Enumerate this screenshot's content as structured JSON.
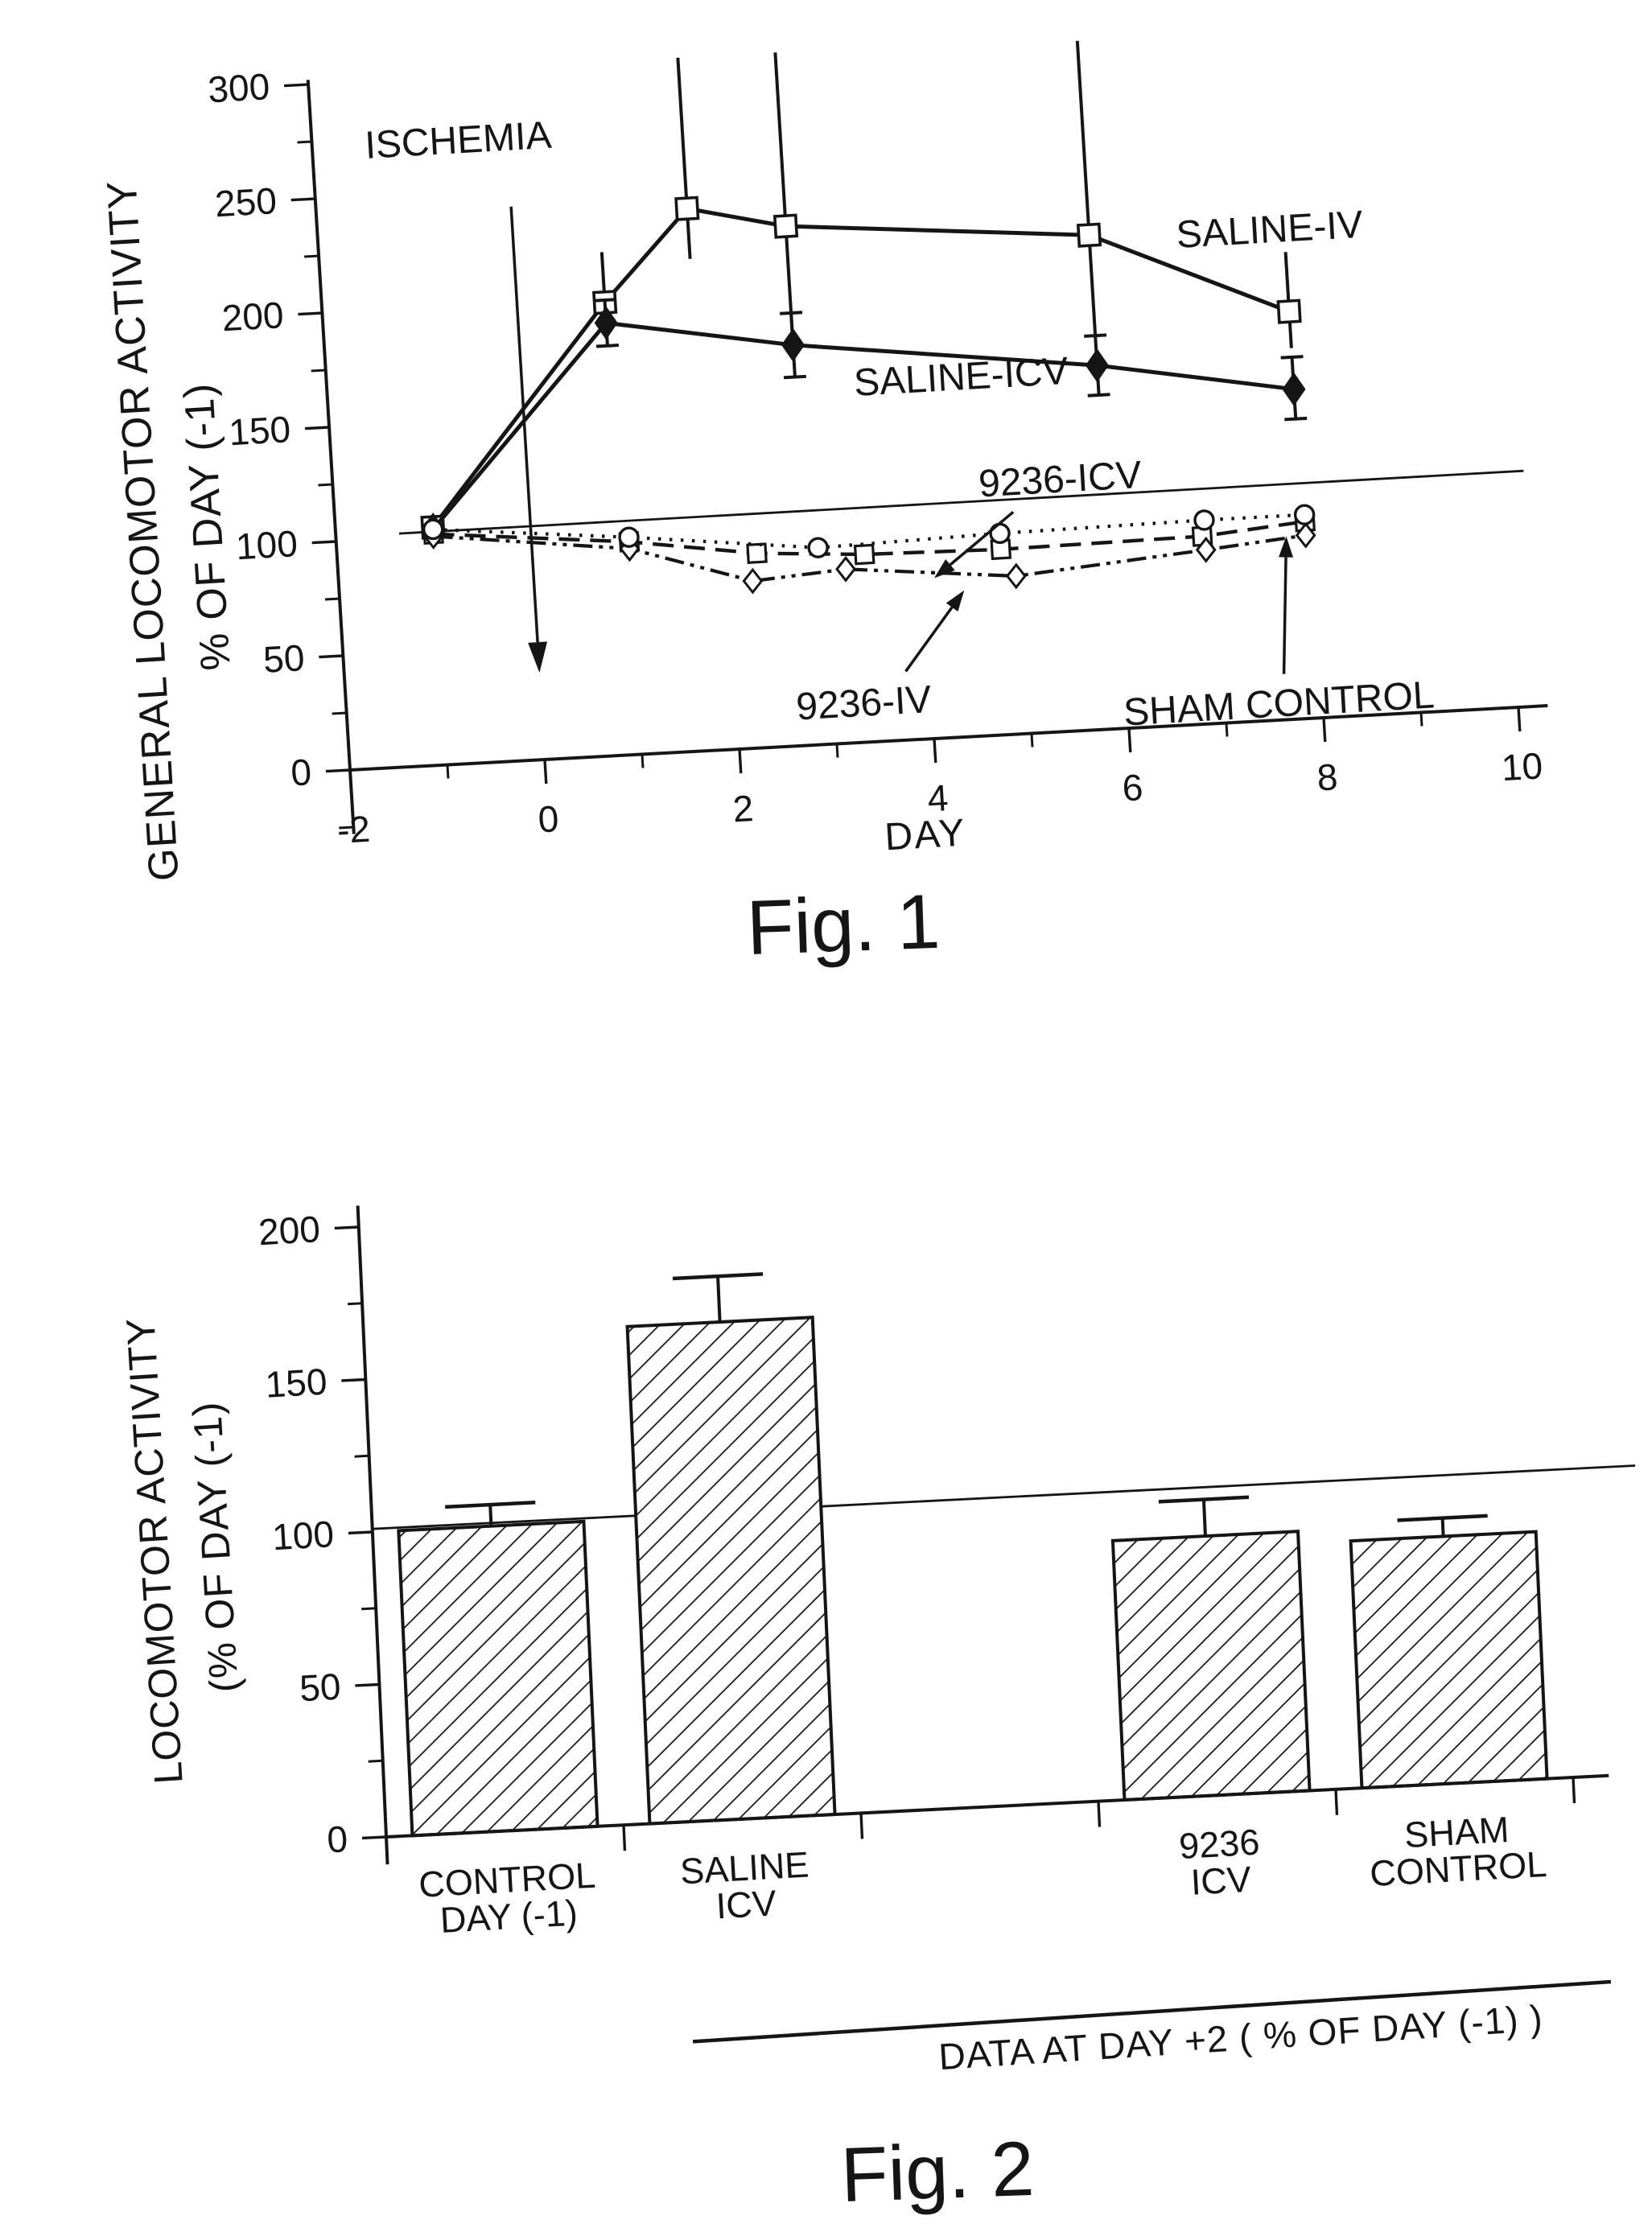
{
  "page": {
    "background": "#ffffff",
    "ink": "#151515"
  },
  "chart_data": [
    {
      "id": "fig1",
      "type": "line",
      "caption": "Fig. 1",
      "xlabel": "DAY",
      "ylabel": [
        "GENERAL LOCOMOTOR ACTIVITY",
        "% OF DAY (-1)"
      ],
      "xlim": [
        -2,
        10.3
      ],
      "ylim": [
        0,
        305
      ],
      "x_major_ticks": [
        -2,
        0,
        2,
        4,
        6,
        8,
        10
      ],
      "x_minor_ticks": [
        -1,
        1,
        3,
        5,
        7,
        9
      ],
      "y_major_ticks": [
        0,
        50,
        100,
        150,
        200,
        250,
        300
      ],
      "y_minor_ticks": [
        -25,
        25,
        75,
        125,
        175,
        225,
        275
      ],
      "grid": false,
      "legend_position": "inline-annotations",
      "reference_line": {
        "value": 102,
        "from": -1.35,
        "to": 10.2
      },
      "series": [
        {
          "name": "SALINE-IV",
          "marker": "square-open",
          "line": "solid",
          "error_caps": false,
          "points": [
            {
              "x": -1,
              "y": 104
            },
            {
              "x": 0.9,
              "y": 198,
              "up": 22
            },
            {
              "x": 1.8,
              "y": 237,
              "up": 66,
              "dn": 22
            },
            {
              "x": 2.8,
              "y": 227,
              "up": 76,
              "dn": 50
            },
            {
              "x": 5.9,
              "y": 216,
              "up": 85,
              "dn": 45
            },
            {
              "x": 7.9,
              "y": 178,
              "up": 26,
              "dn": 16
            }
          ]
        },
        {
          "name": "SALINE-ICV",
          "marker": "diamond-filled",
          "line": "solid",
          "error_caps": true,
          "points": [
            {
              "x": -1,
              "y": 103
            },
            {
              "x": 0.9,
              "y": 189,
              "up": 10,
              "dn": 10
            },
            {
              "x": 2.8,
              "y": 175,
              "up": 14,
              "dn": 14
            },
            {
              "x": 5.9,
              "y": 159,
              "up": 13,
              "dn": 13
            },
            {
              "x": 7.9,
              "y": 144,
              "up": 14,
              "dn": 13
            }
          ]
        },
        {
          "name": "9236-ICV",
          "marker": "square-open-small",
          "line": "dashed",
          "error_caps": false,
          "points": [
            {
              "x": -1,
              "y": 101
            },
            {
              "x": 1,
              "y": 93
            },
            {
              "x": 2.3,
              "y": 85
            },
            {
              "x": 3.4,
              "y": 82
            },
            {
              "x": 4.8,
              "y": 81
            },
            {
              "x": 6.87,
              "y": 82
            },
            {
              "x": 7.93,
              "y": 86
            }
          ]
        },
        {
          "name": "9236-IV",
          "marker": "diamond-open",
          "line": "dashdotdot",
          "error_caps": false,
          "points": [
            {
              "x": -1,
              "y": 100
            },
            {
              "x": 1,
              "y": 90
            },
            {
              "x": 2.24,
              "y": 73
            },
            {
              "x": 3.2,
              "y": 76
            },
            {
              "x": 4.94,
              "y": 69
            },
            {
              "x": 6.9,
              "y": 76
            },
            {
              "x": 7.93,
              "y": 80
            }
          ]
        },
        {
          "name": "SHAM CONTROL",
          "marker": "circle-open",
          "line": "dotted",
          "error_caps": false,
          "points": [
            {
              "x": -1,
              "y": 103
            },
            {
              "x": 1,
              "y": 95
            },
            {
              "x": 2.93,
              "y": 86
            },
            {
              "x": 4.8,
              "y": 88
            },
            {
              "x": 6.9,
              "y": 89
            },
            {
              "x": 7.93,
              "y": 89
            }
          ]
        }
      ],
      "annotations": [
        {
          "text": "ISCHEMIA",
          "x": -0.5,
          "y": 272
        },
        {
          "text": "SALINE-IV",
          "x": 7.75,
          "y": 214
        },
        {
          "text": "SALINE-ICV",
          "x": 4.5,
          "y": 157
        },
        {
          "text": "9236-ICV",
          "x": 5.45,
          "y": 110
        },
        {
          "text": "9236-IV",
          "x": 3.3,
          "y": 17
        },
        {
          "text": "SHAM CONTROL",
          "x": 7.55,
          "y": 7
        }
      ],
      "arrows": [
        {
          "name": "ischemia-arrow",
          "from": [
            0,
            242
          ],
          "to": [
            0,
            38
          ],
          "hl": 38,
          "hw": 12
        },
        {
          "name": "arrow-9236-icv",
          "from": [
            4.95,
            97
          ],
          "to": [
            4.1,
            70
          ],
          "hl": 26,
          "hw": 9
        },
        {
          "name": "arrow-9236-iv",
          "from": [
            3.75,
            30
          ],
          "to": [
            4.4,
            64
          ],
          "hl": 26,
          "hw": 9
        },
        {
          "name": "arrow-sham-control",
          "from": [
            7.62,
            20
          ],
          "to": [
            7.73,
            80
          ],
          "hl": 26,
          "hw": 9
        }
      ]
    },
    {
      "id": "fig2",
      "type": "bar",
      "caption": "Fig. 2",
      "ylabel": [
        "LOCOMOTOR ACTIVITY",
        "(% OF DAY (-1)"
      ],
      "ylim": [
        0,
        207
      ],
      "y_major_ticks": [
        0,
        50,
        100,
        150,
        200
      ],
      "y_minor_ticks": [
        25,
        75,
        125,
        175
      ],
      "x_ticks": [
        1,
        2,
        3,
        4,
        5
      ],
      "grid": false,
      "categories": [
        [
          "CONTROL",
          "DAY (-1)"
        ],
        [
          "SALINE",
          "ICV"
        ],
        [
          "9236",
          "ICV"
        ],
        [
          "SHAM",
          "CONTROL"
        ]
      ],
      "slots": [
        0.5,
        1.5,
        3.5,
        4.5
      ],
      "values": [
        100,
        163,
        85,
        81
      ],
      "errors_up": [
        7,
        15,
        12,
        6
      ],
      "bar_fill": "hatched",
      "reference_line": {
        "value": 101,
        "from": 0,
        "to": 5.32
      },
      "footer": "DATA AT DAY +2 ( % OF DAY (-1) )"
    }
  ]
}
